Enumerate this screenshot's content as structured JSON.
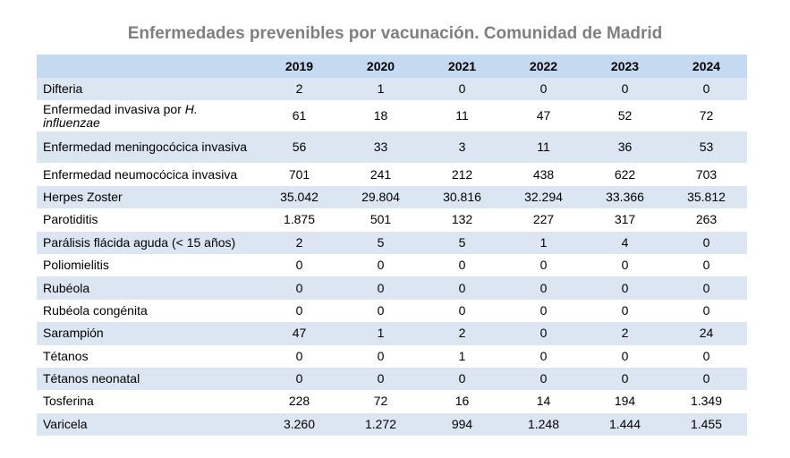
{
  "title": "Enfermedades prevenibles por vacunación. Comunidad de Madrid",
  "colors": {
    "header_bg": "#c5d9f1",
    "band_bg": "#dce6f2",
    "title": "#7f7f7f"
  },
  "chart_data": {
    "type": "table",
    "title": "Enfermedades prevenibles por vacunación. Comunidad de Madrid",
    "columns": [
      "2019",
      "2020",
      "2021",
      "2022",
      "2023",
      "2024"
    ],
    "rows": [
      {
        "label": "Difteria",
        "label_em": "",
        "values": [
          "2",
          "1",
          "0",
          "0",
          "0",
          "0"
        ]
      },
      {
        "label": "Enfermedad invasiva por ",
        "label_em": "H. influenzae",
        "values": [
          "61",
          "18",
          "11",
          "47",
          "52",
          "72"
        ]
      },
      {
        "label": "Enfermedad meningocócica invasiva",
        "label_em": "",
        "values": [
          "56",
          "33",
          "3",
          "11",
          "36",
          "53"
        ]
      },
      {
        "label": "Enfermedad neumocócica invasiva",
        "label_em": "",
        "values": [
          "701",
          "241",
          "212",
          "438",
          "622",
          "703"
        ]
      },
      {
        "label": "Herpes Zoster",
        "label_em": "",
        "values": [
          "35.042",
          "29.804",
          "30.816",
          "32.294",
          "33.366",
          "35.812"
        ]
      },
      {
        "label": "Parotiditis",
        "label_em": "",
        "values": [
          "1.875",
          "501",
          "132",
          "227",
          "317",
          "263"
        ]
      },
      {
        "label": "Parálisis flácida aguda (< 15 años)",
        "label_em": "",
        "values": [
          "2",
          "5",
          "5",
          "1",
          "4",
          "0"
        ]
      },
      {
        "label": "Poliomielitis",
        "label_em": "",
        "values": [
          "0",
          "0",
          "0",
          "0",
          "0",
          "0"
        ]
      },
      {
        "label": "Rubéola",
        "label_em": "",
        "values": [
          "0",
          "0",
          "0",
          "0",
          "0",
          "0"
        ]
      },
      {
        "label": "Rubéola congénita",
        "label_em": "",
        "values": [
          "0",
          "0",
          "0",
          "0",
          "0",
          "0"
        ]
      },
      {
        "label": "Sarampión",
        "label_em": "",
        "values": [
          "47",
          "1",
          "2",
          "0",
          "2",
          "24"
        ]
      },
      {
        "label": "Tétanos",
        "label_em": "",
        "values": [
          "0",
          "0",
          "1",
          "0",
          "0",
          "0"
        ]
      },
      {
        "label": "Tétanos neonatal",
        "label_em": "",
        "values": [
          "0",
          "0",
          "0",
          "0",
          "0",
          "0"
        ]
      },
      {
        "label": "Tosferina",
        "label_em": "",
        "values": [
          "228",
          "72",
          "16",
          "14",
          "194",
          "1.349"
        ]
      },
      {
        "label": "Varicela",
        "label_em": "",
        "values": [
          "3.260",
          "1.272",
          "994",
          "1.248",
          "1.444",
          "1.455"
        ]
      }
    ]
  }
}
